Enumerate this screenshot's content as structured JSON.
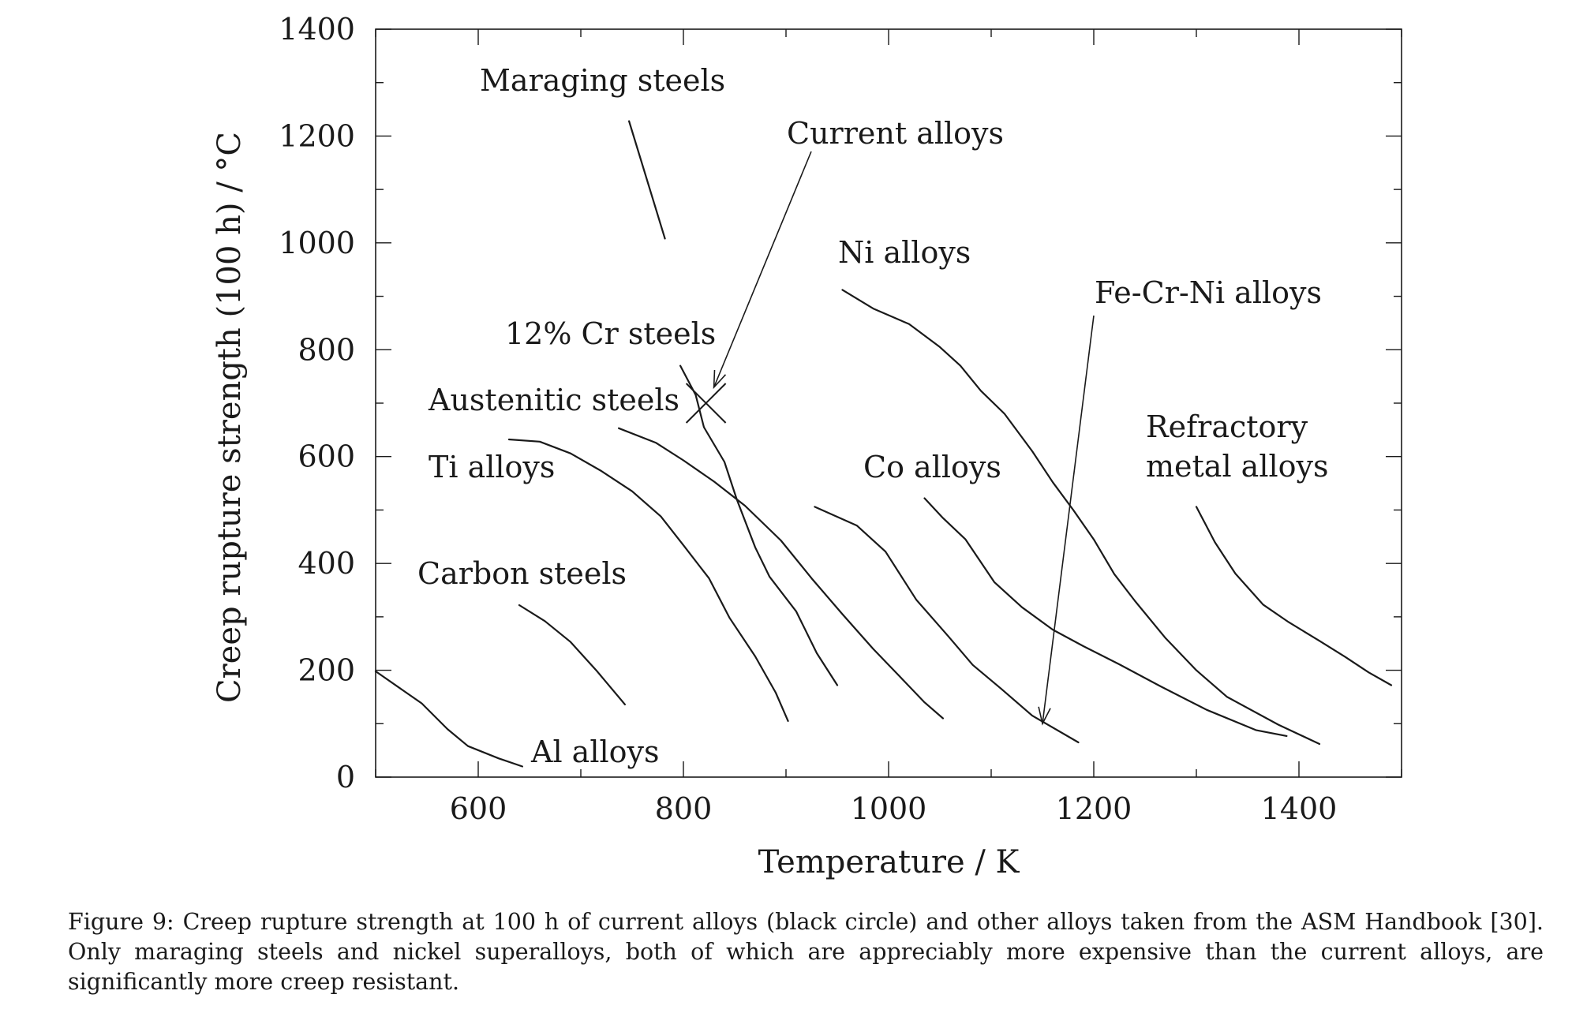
{
  "chart_data": {
    "type": "line",
    "xlabel": "Temperature / K",
    "ylabel": "Creep rupture strength (100 h) / °C",
    "xlim": [
      500,
      1500
    ],
    "ylim": [
      0,
      1400
    ],
    "x_ticks": [
      600,
      800,
      1000,
      1200,
      1400
    ],
    "y_ticks": [
      0,
      200,
      400,
      600,
      800,
      1000,
      1200,
      1400
    ],
    "grid": false,
    "series": [
      {
        "name": "Al alloys",
        "points": [
          [
            500,
            198
          ],
          [
            545,
            138
          ],
          [
            570,
            90
          ],
          [
            590,
            58
          ],
          [
            620,
            35
          ],
          [
            643,
            20
          ]
        ]
      },
      {
        "name": "Carbon steels",
        "points": [
          [
            640,
            322
          ],
          [
            665,
            292
          ],
          [
            690,
            253
          ],
          [
            715,
            200
          ],
          [
            743,
            136
          ]
        ]
      },
      {
        "name": "Ti alloys",
        "points": [
          [
            630,
            632
          ],
          [
            660,
            628
          ],
          [
            690,
            606
          ],
          [
            720,
            573
          ],
          [
            750,
            535
          ],
          [
            778,
            488
          ],
          [
            800,
            434
          ],
          [
            825,
            372
          ],
          [
            845,
            298
          ],
          [
            870,
            226
          ],
          [
            890,
            158
          ],
          [
            902,
            105
          ]
        ]
      },
      {
        "name": "Austenitic steels",
        "points": [
          [
            737,
            653
          ],
          [
            773,
            626
          ],
          [
            800,
            593
          ],
          [
            830,
            553
          ],
          [
            860,
            508
          ],
          [
            895,
            443
          ],
          [
            925,
            372
          ],
          [
            955,
            305
          ],
          [
            985,
            240
          ],
          [
            1010,
            190
          ],
          [
            1035,
            140
          ],
          [
            1053,
            110
          ]
        ]
      },
      {
        "name": "12% Cr steels",
        "points": [
          [
            797,
            770
          ],
          [
            812,
            715
          ],
          [
            820,
            655
          ],
          [
            840,
            590
          ],
          [
            852,
            520
          ],
          [
            870,
            430
          ],
          [
            884,
            375
          ],
          [
            910,
            310
          ],
          [
            930,
            232
          ],
          [
            950,
            172
          ]
        ]
      },
      {
        "name": "Maraging steels",
        "points": [
          [
            747,
            1228
          ],
          [
            782,
            1008
          ]
        ]
      },
      {
        "name": "Co alloys",
        "points": [
          [
            928,
            506
          ],
          [
            969,
            471
          ],
          [
            997,
            422
          ],
          [
            1027,
            332
          ],
          [
            1058,
            264
          ],
          [
            1082,
            210
          ],
          [
            1110,
            165
          ],
          [
            1140,
            115
          ],
          [
            1185,
            65
          ]
        ]
      },
      {
        "name": "Ni alloys",
        "points": [
          [
            955,
            912
          ],
          [
            985,
            877
          ],
          [
            1020,
            848
          ],
          [
            1050,
            805
          ],
          [
            1070,
            770
          ],
          [
            1090,
            723
          ],
          [
            1113,
            680
          ],
          [
            1140,
            610
          ],
          [
            1160,
            552
          ],
          [
            1180,
            500
          ],
          [
            1200,
            445
          ],
          [
            1220,
            380
          ],
          [
            1240,
            330
          ],
          [
            1270,
            260
          ],
          [
            1300,
            200
          ],
          [
            1330,
            150
          ],
          [
            1380,
            98
          ],
          [
            1420,
            62
          ]
        ]
      },
      {
        "name": "Fe-Cr-Ni alloys",
        "points": [
          [
            1035,
            522
          ],
          [
            1053,
            485
          ],
          [
            1075,
            445
          ],
          [
            1103,
            365
          ],
          [
            1130,
            318
          ],
          [
            1160,
            276
          ],
          [
            1190,
            245
          ],
          [
            1225,
            211
          ],
          [
            1265,
            170
          ],
          [
            1310,
            126
          ],
          [
            1358,
            88
          ],
          [
            1388,
            77
          ]
        ]
      },
      {
        "name": "Refractory metal alloys",
        "points": [
          [
            1300,
            506
          ],
          [
            1318,
            440
          ],
          [
            1338,
            381
          ],
          [
            1365,
            323
          ],
          [
            1390,
            290
          ],
          [
            1420,
            255
          ],
          [
            1445,
            225
          ],
          [
            1468,
            196
          ],
          [
            1490,
            172
          ]
        ]
      }
    ],
    "annotations": [
      {
        "label": "Current alloys",
        "marker": "cross",
        "x": 822,
        "y": 700
      }
    ]
  },
  "caption": "Figure 9: Creep rupture strength at 100 h of current alloys (black circle) and other alloys taken from the ASM Handbook [30]. Only maraging steels and nickel superalloys, both of which are appreciably more expensive than the current alloys, are significantly more creep resistant."
}
